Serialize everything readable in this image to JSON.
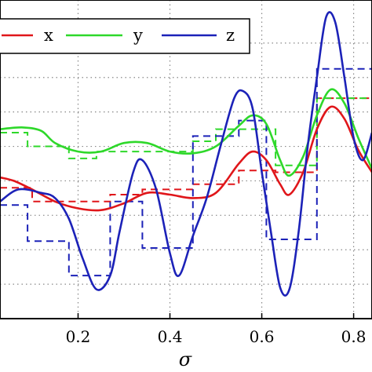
{
  "chart_data": {
    "type": "line",
    "title": "",
    "xlabel": "σ",
    "ylabel": "",
    "xlim": [
      0.03,
      0.84
    ],
    "ylim": [
      -0.8,
      1.05
    ],
    "grid": true,
    "grid_style": "dotted",
    "legend_position": "top",
    "x_ticks": [
      {
        "value": 0.2,
        "label": "0.2"
      },
      {
        "value": 0.4,
        "label": "0.4"
      },
      {
        "value": 0.6,
        "label": "0.6"
      },
      {
        "value": 0.8,
        "label": "0.8"
      }
    ],
    "y_grid_values": [
      -0.6,
      -0.4,
      -0.2,
      0.0,
      0.2,
      0.4,
      0.6,
      0.8
    ],
    "series": [
      {
        "name": "x",
        "color": "#e0161a",
        "smooth": [
          [
            0.03,
            0.02
          ],
          [
            0.06,
            0.0
          ],
          [
            0.1,
            -0.05
          ],
          [
            0.15,
            -0.12
          ],
          [
            0.2,
            -0.16
          ],
          [
            0.25,
            -0.17
          ],
          [
            0.3,
            -0.13
          ],
          [
            0.35,
            -0.07
          ],
          [
            0.4,
            -0.08
          ],
          [
            0.45,
            -0.1
          ],
          [
            0.5,
            -0.07
          ],
          [
            0.55,
            0.1
          ],
          [
            0.58,
            0.17
          ],
          [
            0.61,
            0.12
          ],
          [
            0.64,
            -0.02
          ],
          [
            0.66,
            -0.08
          ],
          [
            0.69,
            0.05
          ],
          [
            0.72,
            0.3
          ],
          [
            0.75,
            0.43
          ],
          [
            0.78,
            0.36
          ],
          [
            0.81,
            0.18
          ],
          [
            0.84,
            0.05
          ]
        ],
        "steps": [
          [
            0.03,
            -0.04
          ],
          [
            0.1,
            -0.04
          ],
          [
            0.1,
            -0.12
          ],
          [
            0.27,
            -0.12
          ],
          [
            0.27,
            -0.08
          ],
          [
            0.34,
            -0.08
          ],
          [
            0.34,
            -0.05
          ],
          [
            0.45,
            -0.05
          ],
          [
            0.45,
            -0.02
          ],
          [
            0.55,
            -0.02
          ],
          [
            0.55,
            0.06
          ],
          [
            0.63,
            0.06
          ],
          [
            0.63,
            0.05
          ],
          [
            0.72,
            0.05
          ],
          [
            0.72,
            0.48
          ],
          [
            0.84,
            0.48
          ]
        ]
      },
      {
        "name": "y",
        "color": "#2ed82a",
        "smooth": [
          [
            0.03,
            0.3
          ],
          [
            0.08,
            0.31
          ],
          [
            0.12,
            0.29
          ],
          [
            0.15,
            0.22
          ],
          [
            0.2,
            0.17
          ],
          [
            0.25,
            0.17
          ],
          [
            0.3,
            0.22
          ],
          [
            0.35,
            0.22
          ],
          [
            0.4,
            0.17
          ],
          [
            0.45,
            0.16
          ],
          [
            0.5,
            0.2
          ],
          [
            0.55,
            0.32
          ],
          [
            0.58,
            0.38
          ],
          [
            0.61,
            0.33
          ],
          [
            0.64,
            0.12
          ],
          [
            0.66,
            0.03
          ],
          [
            0.69,
            0.14
          ],
          [
            0.72,
            0.38
          ],
          [
            0.75,
            0.53
          ],
          [
            0.78,
            0.45
          ],
          [
            0.81,
            0.25
          ],
          [
            0.84,
            0.07
          ]
        ],
        "steps": [
          [
            0.03,
            0.28
          ],
          [
            0.09,
            0.28
          ],
          [
            0.09,
            0.2
          ],
          [
            0.18,
            0.2
          ],
          [
            0.18,
            0.13
          ],
          [
            0.24,
            0.13
          ],
          [
            0.24,
            0.17
          ],
          [
            0.45,
            0.17
          ],
          [
            0.45,
            0.23
          ],
          [
            0.5,
            0.23
          ],
          [
            0.5,
            0.3
          ],
          [
            0.63,
            0.3
          ],
          [
            0.63,
            0.09
          ],
          [
            0.72,
            0.09
          ],
          [
            0.72,
            0.48
          ],
          [
            0.84,
            0.48
          ]
        ]
      },
      {
        "name": "z",
        "color": "#1c22b8",
        "smooth": [
          [
            0.03,
            -0.12
          ],
          [
            0.07,
            -0.05
          ],
          [
            0.12,
            -0.07
          ],
          [
            0.15,
            -0.1
          ],
          [
            0.18,
            -0.22
          ],
          [
            0.21,
            -0.45
          ],
          [
            0.24,
            -0.63
          ],
          [
            0.27,
            -0.55
          ],
          [
            0.29,
            -0.3
          ],
          [
            0.32,
            0.05
          ],
          [
            0.34,
            0.12
          ],
          [
            0.37,
            -0.05
          ],
          [
            0.4,
            -0.42
          ],
          [
            0.42,
            -0.55
          ],
          [
            0.45,
            -0.32
          ],
          [
            0.48,
            -0.1
          ],
          [
            0.51,
            0.2
          ],
          [
            0.54,
            0.48
          ],
          [
            0.56,
            0.52
          ],
          [
            0.58,
            0.42
          ],
          [
            0.6,
            0.05
          ],
          [
            0.62,
            -0.3
          ],
          [
            0.64,
            -0.62
          ],
          [
            0.66,
            -0.63
          ],
          [
            0.68,
            -0.3
          ],
          [
            0.7,
            0.2
          ],
          [
            0.72,
            0.6
          ],
          [
            0.74,
            0.95
          ],
          [
            0.76,
            0.92
          ],
          [
            0.78,
            0.6
          ],
          [
            0.8,
            0.25
          ],
          [
            0.82,
            0.12
          ],
          [
            0.84,
            0.28
          ]
        ],
        "steps": [
          [
            0.03,
            -0.14
          ],
          [
            0.09,
            -0.14
          ],
          [
            0.09,
            -0.35
          ],
          [
            0.18,
            -0.35
          ],
          [
            0.18,
            -0.55
          ],
          [
            0.27,
            -0.55
          ],
          [
            0.27,
            -0.12
          ],
          [
            0.34,
            -0.12
          ],
          [
            0.34,
            -0.39
          ],
          [
            0.45,
            -0.39
          ],
          [
            0.45,
            0.26
          ],
          [
            0.55,
            0.26
          ],
          [
            0.55,
            0.35
          ],
          [
            0.61,
            0.35
          ],
          [
            0.61,
            -0.34
          ],
          [
            0.72,
            -0.34
          ],
          [
            0.72,
            0.65
          ],
          [
            0.84,
            0.65
          ]
        ]
      }
    ]
  }
}
